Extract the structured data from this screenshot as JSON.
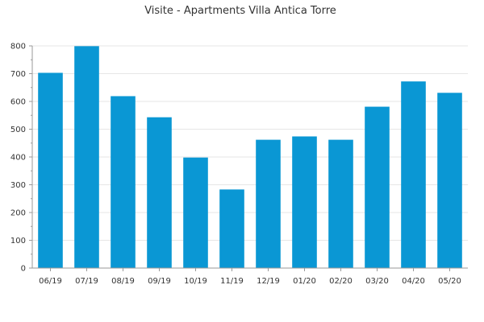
{
  "chart_data": {
    "type": "bar",
    "title": "Visite - Apartments Villa Antica Torre",
    "xlabel": "",
    "ylabel": "",
    "categories": [
      "06/19",
      "07/19",
      "08/19",
      "09/19",
      "10/19",
      "11/19",
      "12/19",
      "01/20",
      "02/20",
      "03/20",
      "04/20",
      "05/20"
    ],
    "values": [
      703,
      799,
      619,
      543,
      398,
      283,
      462,
      474,
      462,
      581,
      672,
      631
    ],
    "ylim": [
      0,
      800
    ],
    "yticks": [
      0,
      100,
      200,
      300,
      400,
      500,
      600,
      700,
      800
    ],
    "grid": true,
    "legend": "none",
    "bar_color": "#0a97d4"
  }
}
